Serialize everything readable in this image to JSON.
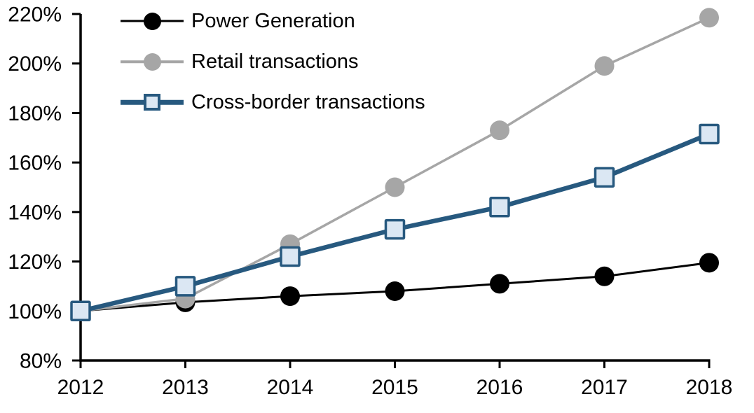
{
  "chart_data": {
    "type": "line",
    "x": [
      2012,
      2013,
      2014,
      2015,
      2016,
      2017,
      2018
    ],
    "x_tick_labels": [
      "2012",
      "2013",
      "2014",
      "2015",
      "2016",
      "2017",
      "2018"
    ],
    "y_tick_labels": [
      "80%",
      "100%",
      "120%",
      "140%",
      "160%",
      "180%",
      "200%",
      "220%"
    ],
    "ylim": [
      80,
      220
    ],
    "y_step": 20,
    "y_format": "percent",
    "grid": false,
    "legend_position": "top-left-inside",
    "background_color": "#ffffff",
    "axis_color": "#000000",
    "series": [
      {
        "name": "Power Generation",
        "color": "#000000",
        "marker": "circle",
        "marker_fill": "#000000",
        "line_width": 3,
        "values": [
          100,
          103.5,
          106,
          108,
          111,
          114,
          119.5
        ]
      },
      {
        "name": "Retail transactions",
        "color": "#a6a6a6",
        "marker": "circle",
        "marker_fill": "#a6a6a6",
        "line_width": 3.5,
        "values": [
          100,
          105,
          127,
          150,
          173,
          199,
          218.5
        ]
      },
      {
        "name": "Cross-border transactions",
        "color": "#27597f",
        "marker": "square",
        "marker_fill": "#dbe7f3",
        "line_width": 6.5,
        "values": [
          100,
          110,
          122,
          133,
          142,
          154,
          171.5
        ]
      }
    ]
  }
}
